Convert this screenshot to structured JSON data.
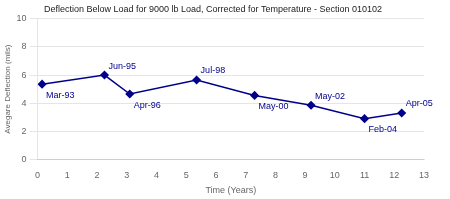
{
  "chart_data": {
    "type": "line",
    "title": "Deflection Below Load for 9000 lb Load, Corrected for Temperature - Section 010102",
    "xlabel": "Time (Years)",
    "ylabel": "Avegare Deflection (mils)",
    "x": [
      0.15,
      2.25,
      3.1,
      5.35,
      7.3,
      9.2,
      11.0,
      12.25
    ],
    "values": [
      5.35,
      6.0,
      4.65,
      5.65,
      4.55,
      3.85,
      2.9,
      3.3
    ],
    "point_labels": [
      "Mar-93",
      "Jun-95",
      "Apr-96",
      "Jul-98",
      "May-00",
      "May-02",
      "Feb-04",
      "Apr-05"
    ],
    "color": "#00008B",
    "marker": "diamond",
    "xlim": [
      0,
      13
    ],
    "ylim": [
      0,
      10
    ],
    "xticks": [
      0,
      1,
      2,
      3,
      4,
      5,
      6,
      7,
      8,
      9,
      10,
      11,
      12,
      13
    ],
    "yticks": [
      0,
      2,
      4,
      6,
      8,
      10
    ],
    "grid": "y"
  }
}
